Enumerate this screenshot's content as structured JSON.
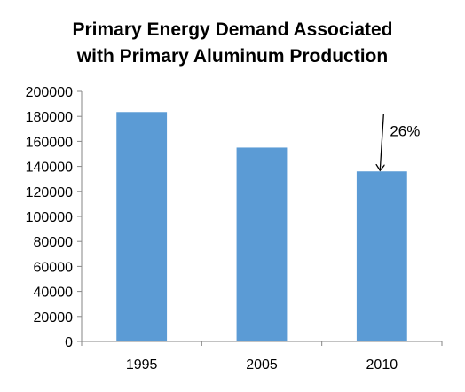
{
  "chart_data": {
    "type": "bar",
    "title_lines": [
      "Primary Energy Demand Associated",
      "with Primary Aluminum Production"
    ],
    "categories": [
      "1995",
      "2005",
      "2010"
    ],
    "values": [
      183500,
      155000,
      136000
    ],
    "ylim": [
      0,
      200000
    ],
    "yticks": [
      0,
      20000,
      40000,
      60000,
      80000,
      100000,
      120000,
      140000,
      160000,
      180000,
      200000
    ],
    "ytick_labels": [
      "0",
      "20000",
      "40000",
      "60000",
      "80000",
      "100000",
      "120000",
      "140000",
      "160000",
      "180000",
      "200000"
    ],
    "grid": false,
    "legend": "none",
    "bar_color": "#5b9bd5",
    "axis_color": "#868686",
    "annotation": {
      "text": "26%",
      "category": "2010",
      "arrow_from_value": 183500,
      "arrow_to_value": 136000
    }
  }
}
